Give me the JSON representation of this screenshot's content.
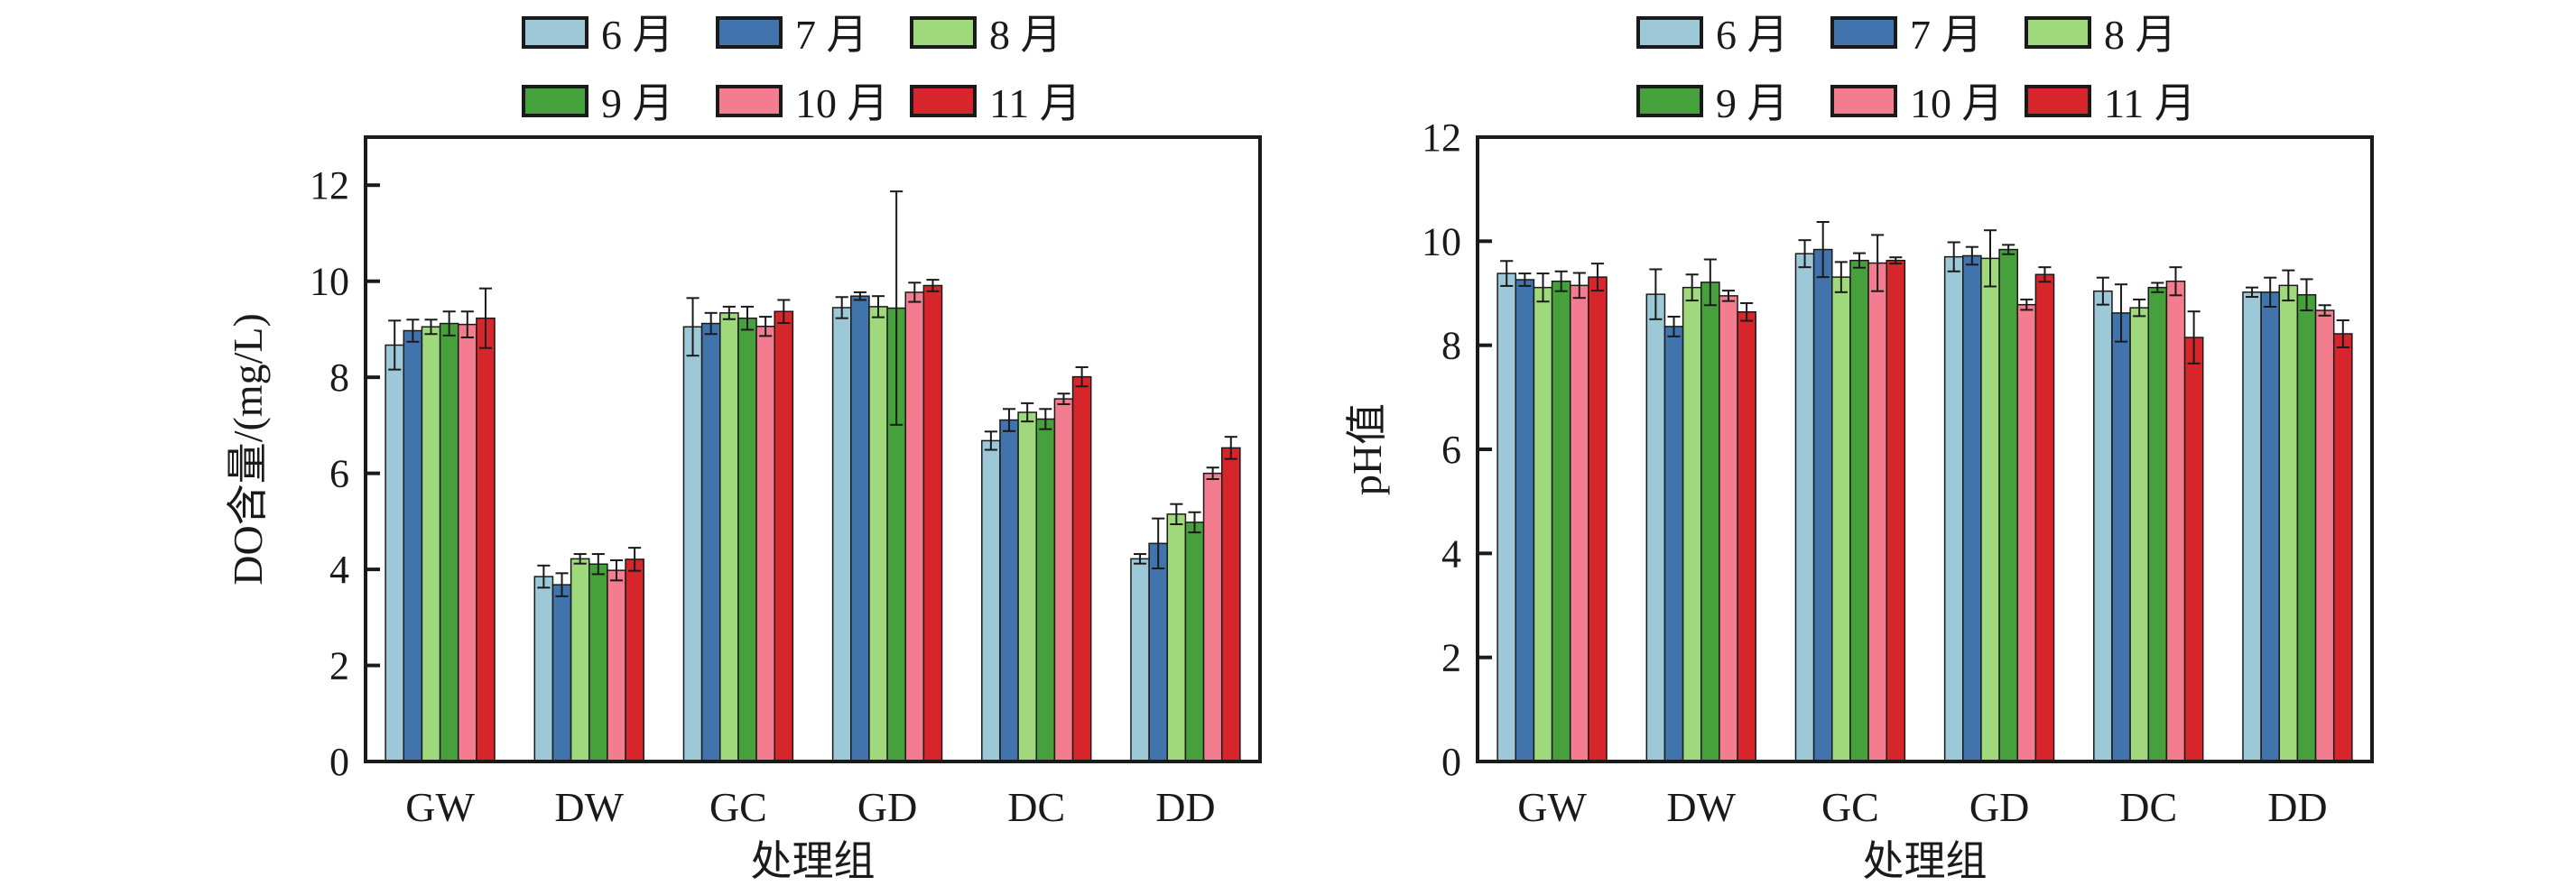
{
  "legend": {
    "series": [
      "6 月",
      "7 月",
      "8 月",
      "9 月",
      "10 月",
      "11 月"
    ],
    "colors": [
      "#9DC8D8",
      "#4174AD",
      "#A0D97C",
      "#46A03B",
      "#F37C8F",
      "#D7252C"
    ]
  },
  "chart_data": [
    {
      "type": "bar",
      "title": "",
      "xlabel": "处理组",
      "ylabel": "DO含量/(mg/L)",
      "ylim": [
        0,
        13
      ],
      "yticks": [
        0,
        2,
        4,
        6,
        8,
        10,
        12
      ],
      "grid": false,
      "legend_position": "top-center",
      "categories": [
        "GW",
        "DW",
        "GC",
        "GD",
        "DC",
        "DD"
      ],
      "series": [
        {
          "name": "6 月",
          "values": [
            8.67,
            3.85,
            9.05,
            9.45,
            6.68,
            4.22
          ],
          "errors": [
            0.51,
            0.23,
            0.6,
            0.22,
            0.19,
            0.1
          ]
        },
        {
          "name": "7 月",
          "values": [
            8.97,
            3.68,
            9.12,
            9.69,
            7.11,
            4.54
          ],
          "errors": [
            0.23,
            0.24,
            0.22,
            0.08,
            0.23,
            0.52
          ]
        },
        {
          "name": "8 月",
          "values": [
            9.05,
            4.22,
            9.34,
            9.47,
            7.27,
            5.15
          ],
          "errors": [
            0.15,
            0.1,
            0.13,
            0.22,
            0.19,
            0.21
          ]
        },
        {
          "name": "9 月",
          "values": [
            9.12,
            4.11,
            9.23,
            9.44,
            7.13,
            4.98
          ],
          "errors": [
            0.25,
            0.21,
            0.24,
            2.43,
            0.21,
            0.21
          ]
        },
        {
          "name": "10 月",
          "values": [
            9.1,
            3.98,
            9.06,
            9.77,
            7.55,
            6.0
          ],
          "errors": [
            0.27,
            0.21,
            0.2,
            0.2,
            0.11,
            0.12
          ]
        },
        {
          "name": "11 月",
          "values": [
            9.23,
            4.21,
            9.37,
            9.91,
            8.01,
            6.53
          ],
          "errors": [
            0.62,
            0.24,
            0.24,
            0.12,
            0.2,
            0.23
          ]
        }
      ]
    },
    {
      "type": "bar",
      "title": "",
      "xlabel": "处理组",
      "ylabel": "pH值",
      "ylim": [
        0,
        12
      ],
      "yticks": [
        0,
        2,
        4,
        6,
        8,
        10,
        12
      ],
      "grid": false,
      "legend_position": "top-center",
      "categories": [
        "GW",
        "DW",
        "GC",
        "GD",
        "DC",
        "DD"
      ],
      "series": [
        {
          "name": "6 月",
          "values": [
            9.38,
            8.98,
            9.76,
            9.7,
            9.04,
            9.02
          ],
          "errors": [
            0.24,
            0.48,
            0.26,
            0.28,
            0.26,
            0.09
          ]
        },
        {
          "name": "7 月",
          "values": [
            9.26,
            8.36,
            9.84,
            9.72,
            8.62,
            9.02
          ],
          "errors": [
            0.12,
            0.19,
            0.53,
            0.17,
            0.55,
            0.28
          ]
        },
        {
          "name": "8 月",
          "values": [
            9.11,
            9.11,
            9.31,
            9.67,
            8.72,
            9.15
          ],
          "errors": [
            0.27,
            0.25,
            0.29,
            0.54,
            0.16,
            0.29
          ]
        },
        {
          "name": "9 月",
          "values": [
            9.23,
            9.21,
            9.63,
            9.84,
            9.11,
            8.97
          ],
          "errors": [
            0.19,
            0.44,
            0.14,
            0.09,
            0.09,
            0.3
          ]
        },
        {
          "name": "10 月",
          "values": [
            9.15,
            8.95,
            9.58,
            8.78,
            9.23,
            8.67
          ],
          "errors": [
            0.24,
            0.1,
            0.54,
            0.1,
            0.27,
            0.1
          ]
        },
        {
          "name": "11 月",
          "values": [
            9.31,
            8.64,
            9.63,
            9.36,
            8.15,
            8.22
          ],
          "errors": [
            0.26,
            0.17,
            0.06,
            0.14,
            0.5,
            0.26
          ]
        }
      ]
    }
  ]
}
